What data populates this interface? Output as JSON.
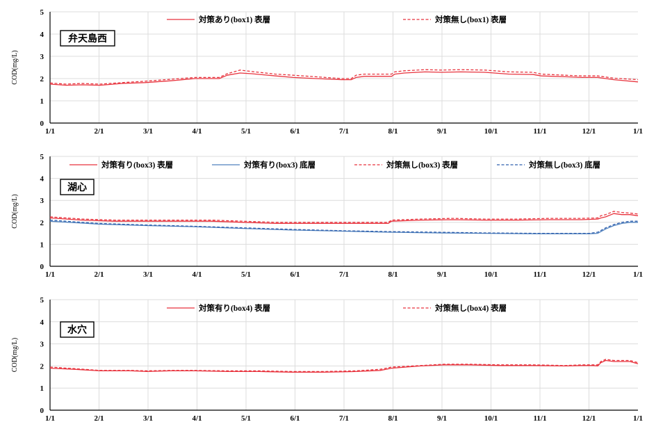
{
  "chart_data": [
    {
      "type": "line",
      "station": "弁天島西",
      "ylabel": "COD(mg/L)",
      "ylim": [
        0,
        5
      ],
      "yticks": [
        "0",
        "1",
        "2",
        "3",
        "4",
        "5"
      ],
      "xticks": [
        "1/1",
        "2/1",
        "3/1",
        "4/1",
        "5/1",
        "6/1",
        "7/1",
        "8/1",
        "9/1",
        "10/1",
        "11/1",
        "12/1",
        "1/1"
      ],
      "x_domain_days": [
        0,
        365
      ],
      "grid": true,
      "legend_position": "top",
      "series": [
        {
          "name": "対策あり(box1)  表層",
          "color": "#e8323c",
          "dash": "solid",
          "x": [
            0,
            10,
            20,
            31,
            45,
            59,
            75,
            90,
            105,
            110,
            118,
            125,
            140,
            151,
            165,
            181,
            187,
            190,
            195,
            205,
            212,
            214,
            220,
            233,
            243,
            255,
            270,
            285,
            300,
            305,
            320,
            330,
            340,
            350,
            365
          ],
          "values": [
            1.75,
            1.7,
            1.72,
            1.7,
            1.78,
            1.82,
            1.9,
            2.0,
            2.0,
            2.15,
            2.25,
            2.22,
            2.12,
            2.05,
            2.0,
            1.95,
            1.95,
            2.05,
            2.1,
            2.1,
            2.1,
            2.2,
            2.25,
            2.3,
            2.28,
            2.3,
            2.28,
            2.2,
            2.18,
            2.12,
            2.08,
            2.05,
            2.05,
            1.95,
            1.85
          ]
        },
        {
          "name": "対策無し(box1)  表層",
          "color": "#e8323c",
          "dash": "dashed",
          "x": [
            0,
            10,
            20,
            31,
            45,
            59,
            75,
            90,
            105,
            110,
            118,
            125,
            140,
            151,
            165,
            181,
            187,
            190,
            195,
            205,
            212,
            214,
            220,
            233,
            243,
            255,
            270,
            285,
            300,
            305,
            320,
            330,
            340,
            350,
            365
          ],
          "values": [
            1.8,
            1.75,
            1.78,
            1.75,
            1.82,
            1.88,
            1.97,
            2.05,
            2.05,
            2.22,
            2.38,
            2.32,
            2.2,
            2.15,
            2.08,
            2.0,
            2.0,
            2.15,
            2.2,
            2.2,
            2.2,
            2.3,
            2.35,
            2.4,
            2.38,
            2.4,
            2.38,
            2.3,
            2.28,
            2.2,
            2.15,
            2.12,
            2.12,
            2.02,
            1.95
          ]
        }
      ]
    },
    {
      "type": "line",
      "station": "湖心",
      "ylabel": "COD(mg/L)",
      "ylim": [
        0,
        5
      ],
      "yticks": [
        "0",
        "1",
        "2",
        "3",
        "4",
        "5"
      ],
      "xticks": [
        "1/1",
        "2/1",
        "3/1",
        "4/1",
        "5/1",
        "6/1",
        "7/1",
        "8/1",
        "9/1",
        "10/1",
        "11/1",
        "12/1",
        "1/1"
      ],
      "x_domain_days": [
        0,
        365
      ],
      "grid": true,
      "legend_position": "top",
      "series": [
        {
          "name": "対策有り(box3)  表層",
          "color": "#e8323c",
          "dash": "solid",
          "x": [
            0,
            20,
            40,
            60,
            80,
            100,
            120,
            140,
            160,
            180,
            200,
            210,
            212,
            230,
            250,
            270,
            290,
            310,
            330,
            340,
            342,
            345,
            350,
            355,
            360,
            365
          ],
          "values": [
            2.2,
            2.1,
            2.05,
            2.05,
            2.05,
            2.05,
            2.0,
            1.95,
            1.95,
            1.95,
            1.95,
            1.95,
            2.05,
            2.1,
            2.12,
            2.1,
            2.1,
            2.12,
            2.12,
            2.15,
            2.2,
            2.25,
            2.4,
            2.35,
            2.35,
            2.3
          ]
        },
        {
          "name": "対策有り(box3)  底層",
          "color": "#4f81bd",
          "dash": "solid",
          "x": [
            0,
            30,
            60,
            90,
            120,
            150,
            180,
            210,
            240,
            270,
            300,
            330,
            335,
            340,
            345,
            350,
            355,
            360,
            365
          ],
          "values": [
            2.05,
            1.92,
            1.85,
            1.8,
            1.72,
            1.65,
            1.6,
            1.55,
            1.52,
            1.5,
            1.48,
            1.48,
            1.48,
            1.5,
            1.7,
            1.85,
            1.95,
            2.0,
            2.0
          ]
        },
        {
          "name": "対策無し(box3)  表層",
          "color": "#e8323c",
          "dash": "dashed",
          "x": [
            0,
            20,
            40,
            60,
            80,
            100,
            120,
            140,
            160,
            180,
            200,
            210,
            212,
            230,
            250,
            270,
            290,
            310,
            330,
            340,
            342,
            345,
            350,
            355,
            360,
            365
          ],
          "values": [
            2.25,
            2.15,
            2.1,
            2.1,
            2.1,
            2.1,
            2.05,
            2.0,
            2.0,
            2.0,
            2.0,
            2.0,
            2.1,
            2.15,
            2.18,
            2.15,
            2.15,
            2.18,
            2.18,
            2.2,
            2.3,
            2.35,
            2.5,
            2.45,
            2.42,
            2.38
          ]
        },
        {
          "name": "対策無し(box3)  底層",
          "color": "#2f5fae",
          "dash": "dashed",
          "x": [
            0,
            30,
            60,
            90,
            120,
            150,
            180,
            210,
            240,
            270,
            300,
            330,
            335,
            340,
            345,
            350,
            355,
            360,
            365
          ],
          "values": [
            2.1,
            1.95,
            1.88,
            1.82,
            1.75,
            1.68,
            1.62,
            1.58,
            1.55,
            1.52,
            1.5,
            1.5,
            1.5,
            1.55,
            1.75,
            1.9,
            2.0,
            2.05,
            2.05
          ]
        }
      ]
    },
    {
      "type": "line",
      "station": "水穴",
      "ylabel": "COD(mg/L)",
      "ylim": [
        0,
        5
      ],
      "yticks": [
        "0",
        "1",
        "2",
        "3",
        "4",
        "5"
      ],
      "xticks": [
        "1/1",
        "2/1",
        "3/1",
        "4/1",
        "5/1",
        "6/1",
        "7/1",
        "8/1",
        "9/1",
        "10/1",
        "11/1",
        "12/1",
        "1/1"
      ],
      "x_domain_days": [
        0,
        365
      ],
      "grid": true,
      "legend_position": "top",
      "series": [
        {
          "name": "対策有り(box4)  表層",
          "color": "#e8323c",
          "dash": "solid",
          "x": [
            0,
            15,
            31,
            50,
            60,
            75,
            90,
            110,
            130,
            150,
            170,
            190,
            205,
            212,
            230,
            245,
            260,
            280,
            300,
            320,
            330,
            337,
            340,
            342,
            345,
            350,
            355,
            360,
            365
          ],
          "values": [
            1.9,
            1.85,
            1.78,
            1.78,
            1.75,
            1.78,
            1.78,
            1.75,
            1.75,
            1.72,
            1.72,
            1.75,
            1.8,
            1.9,
            2.0,
            2.05,
            2.05,
            2.02,
            2.02,
            2.0,
            2.02,
            2.02,
            2.0,
            2.15,
            2.25,
            2.2,
            2.2,
            2.2,
            2.1
          ]
        },
        {
          "name": "対策無し(box4)  表層",
          "color": "#e8323c",
          "dash": "dashed",
          "x": [
            0,
            15,
            31,
            50,
            60,
            75,
            90,
            110,
            130,
            150,
            170,
            190,
            205,
            212,
            230,
            245,
            260,
            280,
            300,
            320,
            330,
            337,
            340,
            342,
            345,
            350,
            355,
            360,
            365
          ],
          "values": [
            1.95,
            1.88,
            1.8,
            1.8,
            1.78,
            1.8,
            1.8,
            1.78,
            1.78,
            1.75,
            1.75,
            1.78,
            1.85,
            1.95,
            2.02,
            2.08,
            2.08,
            2.05,
            2.05,
            2.02,
            2.05,
            2.05,
            2.05,
            2.2,
            2.3,
            2.25,
            2.25,
            2.25,
            2.15
          ]
        }
      ]
    }
  ]
}
